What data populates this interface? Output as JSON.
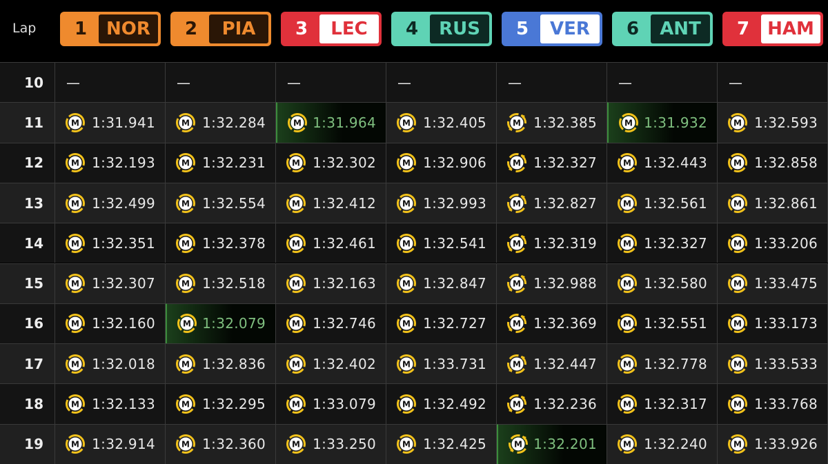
{
  "header": {
    "lap_label": "Lap"
  },
  "drivers": [
    {
      "position": "1",
      "code": "NOR",
      "color": "#ef8a2e",
      "number_color": "#2a1606",
      "code_bg": "#2a1606",
      "code_color": "#ef8a2e",
      "tyre_style": "ring"
    },
    {
      "position": "2",
      "code": "PIA",
      "color": "#ef8a2e",
      "number_color": "#2a1606",
      "code_bg": "#2a1606",
      "code_color": "#ef8a2e",
      "tyre_style": "ring"
    },
    {
      "position": "3",
      "code": "LEC",
      "color": "#e0313b",
      "number_color": "#ffffff",
      "code_bg": "#ffffff",
      "code_color": "#e0313b",
      "tyre_style": "ring"
    },
    {
      "position": "4",
      "code": "RUS",
      "color": "#5fd3b5",
      "number_color": "#0d2a24",
      "code_bg": "#0d2a24",
      "code_color": "#5fd3b5",
      "tyre_style": "ring"
    },
    {
      "position": "5",
      "code": "VER",
      "color": "#4a78d6",
      "number_color": "#ffffff",
      "code_bg": "#ffffff",
      "code_color": "#4a78d6",
      "tyre_style": "swap"
    },
    {
      "position": "6",
      "code": "ANT",
      "color": "#5fd3b5",
      "number_color": "#0d2a24",
      "code_bg": "#0d2a24",
      "code_color": "#5fd3b5",
      "tyre_style": "ring"
    },
    {
      "position": "7",
      "code": "HAM",
      "color": "#e0313b",
      "number_color": "#ffffff",
      "code_bg": "#ffffff",
      "code_color": "#e0313b",
      "tyre_style": "ring"
    }
  ],
  "rows": [
    {
      "lap": 10,
      "cells": [
        {
          "time": "—"
        },
        {
          "time": "—"
        },
        {
          "time": "—"
        },
        {
          "time": "—"
        },
        {
          "time": "—"
        },
        {
          "time": "—"
        },
        {
          "time": "—"
        }
      ]
    },
    {
      "lap": 11,
      "cells": [
        {
          "tyre": "M",
          "time": "1:31.941"
        },
        {
          "tyre": "M",
          "time": "1:32.284"
        },
        {
          "tyre": "M",
          "time": "1:31.964",
          "best": true
        },
        {
          "tyre": "M",
          "time": "1:32.405"
        },
        {
          "tyre": "M",
          "time": "1:32.385"
        },
        {
          "tyre": "M",
          "time": "1:31.932",
          "best": true
        },
        {
          "tyre": "M",
          "time": "1:32.593"
        }
      ]
    },
    {
      "lap": 12,
      "cells": [
        {
          "tyre": "M",
          "time": "1:32.193"
        },
        {
          "tyre": "M",
          "time": "1:32.231"
        },
        {
          "tyre": "M",
          "time": "1:32.302"
        },
        {
          "tyre": "M",
          "time": "1:32.906"
        },
        {
          "tyre": "M",
          "time": "1:32.327"
        },
        {
          "tyre": "M",
          "time": "1:32.443"
        },
        {
          "tyre": "M",
          "time": "1:32.858"
        }
      ]
    },
    {
      "lap": 13,
      "cells": [
        {
          "tyre": "M",
          "time": "1:32.499"
        },
        {
          "tyre": "M",
          "time": "1:32.554"
        },
        {
          "tyre": "M",
          "time": "1:32.412"
        },
        {
          "tyre": "M",
          "time": "1:32.993"
        },
        {
          "tyre": "M",
          "time": "1:32.827"
        },
        {
          "tyre": "M",
          "time": "1:32.561"
        },
        {
          "tyre": "M",
          "time": "1:32.861"
        }
      ]
    },
    {
      "lap": 14,
      "cells": [
        {
          "tyre": "M",
          "time": "1:32.351"
        },
        {
          "tyre": "M",
          "time": "1:32.378"
        },
        {
          "tyre": "M",
          "time": "1:32.461"
        },
        {
          "tyre": "M",
          "time": "1:32.541"
        },
        {
          "tyre": "M",
          "time": "1:32.319"
        },
        {
          "tyre": "M",
          "time": "1:32.327"
        },
        {
          "tyre": "M",
          "time": "1:33.206"
        }
      ]
    },
    {
      "lap": 15,
      "cells": [
        {
          "tyre": "M",
          "time": "1:32.307"
        },
        {
          "tyre": "M",
          "time": "1:32.518"
        },
        {
          "tyre": "M",
          "time": "1:32.163"
        },
        {
          "tyre": "M",
          "time": "1:32.847"
        },
        {
          "tyre": "M",
          "time": "1:32.988"
        },
        {
          "tyre": "M",
          "time": "1:32.580"
        },
        {
          "tyre": "M",
          "time": "1:33.475"
        }
      ]
    },
    {
      "lap": 16,
      "cells": [
        {
          "tyre": "M",
          "time": "1:32.160"
        },
        {
          "tyre": "M",
          "time": "1:32.079",
          "best": true
        },
        {
          "tyre": "M",
          "time": "1:32.746"
        },
        {
          "tyre": "M",
          "time": "1:32.727"
        },
        {
          "tyre": "M",
          "time": "1:32.369"
        },
        {
          "tyre": "M",
          "time": "1:32.551"
        },
        {
          "tyre": "M",
          "time": "1:33.173"
        }
      ]
    },
    {
      "lap": 17,
      "cells": [
        {
          "tyre": "M",
          "time": "1:32.018"
        },
        {
          "tyre": "M",
          "time": "1:32.836"
        },
        {
          "tyre": "M",
          "time": "1:32.402"
        },
        {
          "tyre": "M",
          "time": "1:33.731"
        },
        {
          "tyre": "M",
          "time": "1:32.447"
        },
        {
          "tyre": "M",
          "time": "1:32.778"
        },
        {
          "tyre": "M",
          "time": "1:33.533"
        }
      ]
    },
    {
      "lap": 18,
      "cells": [
        {
          "tyre": "M",
          "time": "1:32.133"
        },
        {
          "tyre": "M",
          "time": "1:32.295"
        },
        {
          "tyre": "M",
          "time": "1:33.079"
        },
        {
          "tyre": "M",
          "time": "1:32.492"
        },
        {
          "tyre": "M",
          "time": "1:32.236"
        },
        {
          "tyre": "M",
          "time": "1:32.317"
        },
        {
          "tyre": "M",
          "time": "1:33.768"
        }
      ]
    },
    {
      "lap": 19,
      "cells": [
        {
          "tyre": "M",
          "time": "1:32.914"
        },
        {
          "tyre": "M",
          "time": "1:32.360"
        },
        {
          "tyre": "M",
          "time": "1:33.250"
        },
        {
          "tyre": "M",
          "time": "1:32.425"
        },
        {
          "tyre": "M",
          "time": "1:32.201",
          "best": true
        },
        {
          "tyre": "M",
          "time": "1:32.240"
        },
        {
          "tyre": "M",
          "time": "1:33.926"
        }
      ]
    }
  ]
}
